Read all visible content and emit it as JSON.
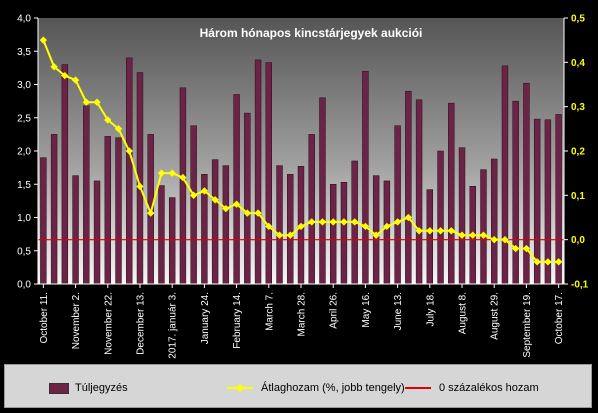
{
  "chart_data": {
    "type": "bar",
    "title": "Három hónapos kincstárjegyek aukciói",
    "y_left": {
      "min": 0,
      "max": 4,
      "ticks": [
        "0,0",
        "0,5",
        "1,0",
        "1,5",
        "2,0",
        "2,5",
        "3,0",
        "3,5",
        "4,0"
      ]
    },
    "y_right": {
      "min": -0.1,
      "max": 0.5,
      "ticks": [
        "-0,1",
        "0,0",
        "0,1",
        "0,2",
        "0,3",
        "0,4",
        "0,5"
      ]
    },
    "x_tick_labels": [
      "October 11.",
      "November 2.",
      "November 22.",
      "December 13.",
      "2017. január 3.",
      "January 24.",
      "February 14.",
      "March 7.",
      "March 28.",
      "April 26.",
      "May 16.",
      "June 13.",
      "July 18.",
      "August 8.",
      "August 29.",
      "September 19.",
      "October 17."
    ],
    "series": [
      {
        "name": "Túljegyzés",
        "axis": "left",
        "kind": "bar",
        "values": [
          1.9,
          2.25,
          3.3,
          1.63,
          2.68,
          1.55,
          2.22,
          2.2,
          3.4,
          3.18,
          2.25,
          1.48,
          1.3,
          2.95,
          2.38,
          1.65,
          1.87,
          1.78,
          2.85,
          2.57,
          3.37,
          3.33,
          1.78,
          1.65,
          1.77,
          2.25,
          2.8,
          1.5,
          1.53,
          1.85,
          3.2,
          1.63,
          1.55,
          2.38,
          2.9,
          2.77,
          1.42,
          2.0,
          2.72,
          2.05,
          1.47,
          1.72,
          1.88,
          3.28,
          2.75,
          3.02,
          2.48,
          2.47,
          2.55
        ]
      },
      {
        "name": "Átlaghozam (%, jobb tengely)",
        "axis": "right",
        "kind": "line",
        "values": [
          0.45,
          0.39,
          0.37,
          0.36,
          0.31,
          0.31,
          0.27,
          0.25,
          0.2,
          0.12,
          0.06,
          0.15,
          0.15,
          0.14,
          0.1,
          0.11,
          0.09,
          0.07,
          0.08,
          0.06,
          0.06,
          0.03,
          0.01,
          0.01,
          0.03,
          0.04,
          0.04,
          0.04,
          0.04,
          0.04,
          0.03,
          0.01,
          0.03,
          0.04,
          0.05,
          0.02,
          0.02,
          0.02,
          0.02,
          0.01,
          0.01,
          0.01,
          0.0,
          0.0,
          -0.02,
          -0.02,
          -0.05,
          -0.05,
          -0.05
        ]
      },
      {
        "name": "0 százalékos hozam",
        "axis": "right",
        "kind": "hline",
        "value": 0.0
      }
    ],
    "colors": {
      "bar": "#6b2445",
      "line": "#ffff00",
      "zero_line": "#e00000",
      "plot_top": "#5a5a5a",
      "plot_bottom": "#f4f4f4",
      "axis_text": "#ffffff",
      "right_axis_text": "#ffff00"
    },
    "legend_position": "bottom",
    "grid": false
  }
}
